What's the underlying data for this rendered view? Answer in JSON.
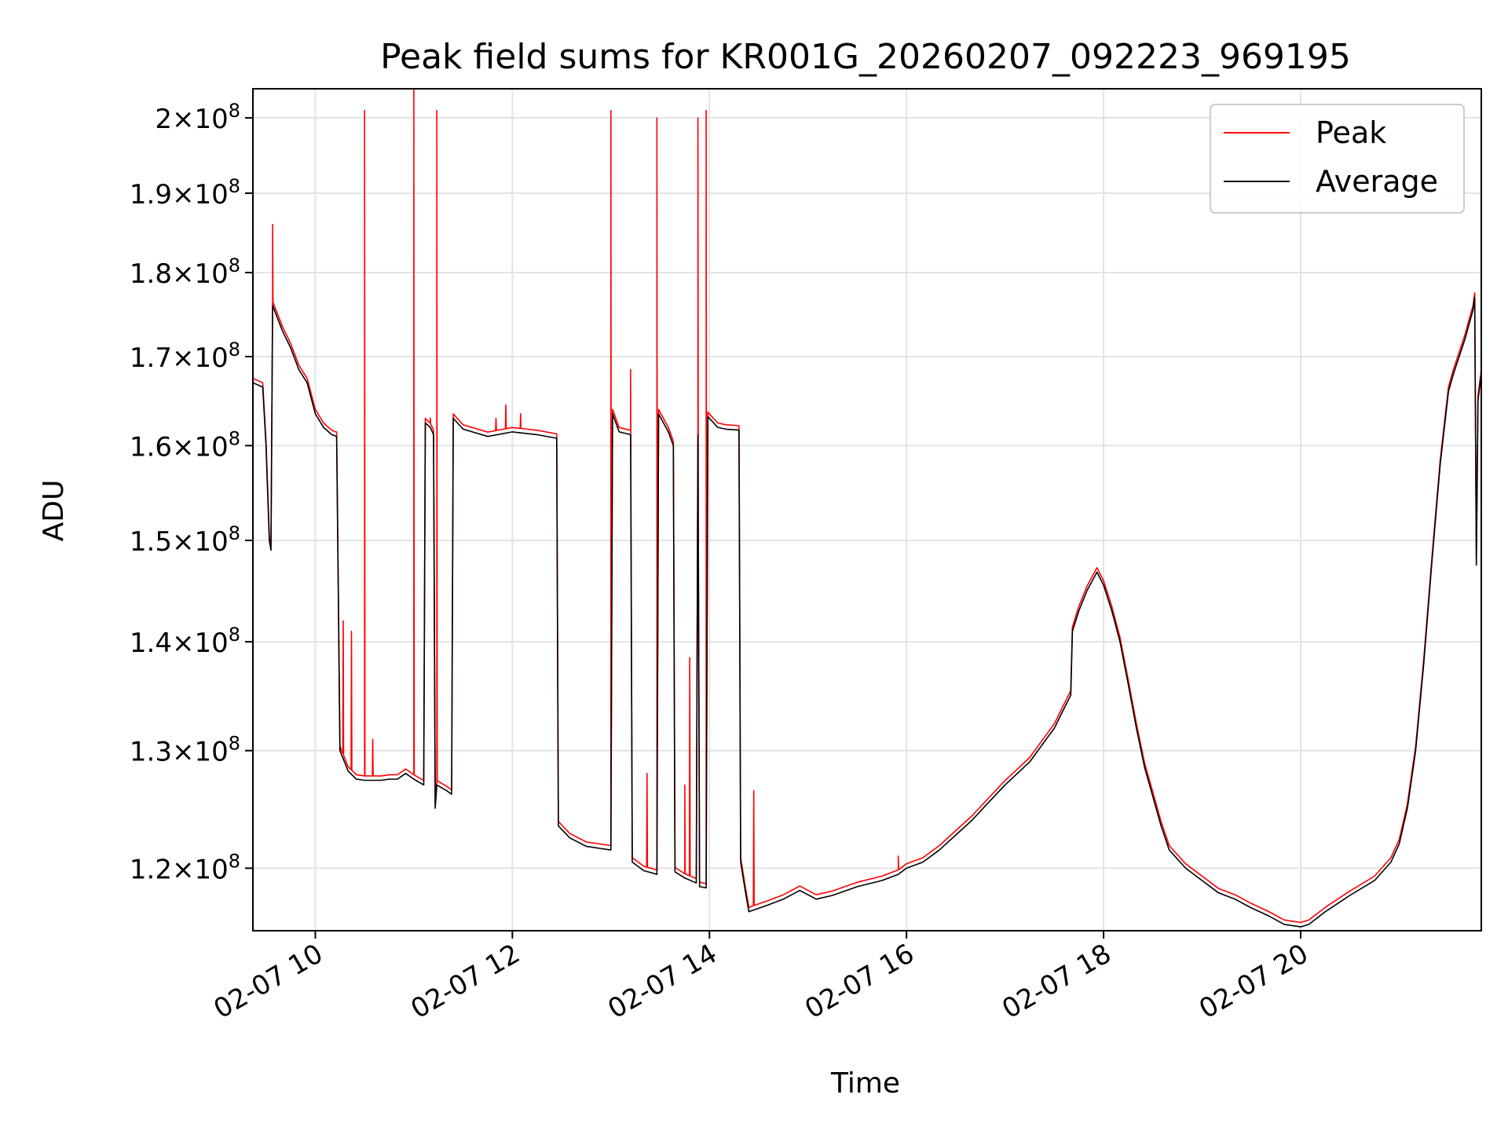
{
  "chart_data": {
    "type": "line",
    "title": "Peak field sums for KR001G_20260207_092223_969195",
    "xlabel": "Time",
    "ylabel": "ADU",
    "y_scale": "log",
    "xlim": [
      "2026-02-07 09:22",
      "2026-02-07 21:50"
    ],
    "ylim": [
      115000000,
      204000000
    ],
    "grid": true,
    "legend_placement": "top-right",
    "x_ticks": [
      "02-07 10",
      "02-07 12",
      "02-07 14",
      "02-07 16",
      "02-07 18",
      "02-07 20"
    ],
    "x_tick_hours": [
      10,
      12,
      14,
      16,
      18,
      20
    ],
    "y_ticks": [
      {
        "value": 120000000,
        "mantissa": "1.2",
        "exp": "8"
      },
      {
        "value": 130000000,
        "mantissa": "1.3",
        "exp": "8"
      },
      {
        "value": 140000000,
        "mantissa": "1.4",
        "exp": "8"
      },
      {
        "value": 150000000,
        "mantissa": "1.5",
        "exp": "8"
      },
      {
        "value": 160000000,
        "mantissa": "1.6",
        "exp": "8"
      },
      {
        "value": 170000000,
        "mantissa": "1.7",
        "exp": "8"
      },
      {
        "value": 180000000,
        "mantissa": "1.8",
        "exp": "8"
      },
      {
        "value": 190000000,
        "mantissa": "1.9",
        "exp": "8"
      },
      {
        "value": 200000000,
        "mantissa": "2",
        "exp": "8"
      }
    ],
    "series": [
      {
        "name": "Average",
        "color": "#000000",
        "points": [
          [
            "09:22",
            167000000.0
          ],
          [
            "09:28",
            166500000.0
          ],
          [
            "09:30",
            160000000.0
          ],
          [
            "09:32",
            150000000.0
          ],
          [
            "09:33",
            149000000.0
          ],
          [
            "09:34",
            176000000.0
          ],
          [
            "09:40",
            173000000.0
          ],
          [
            "09:45",
            171000000.0
          ],
          [
            "09:50",
            168500000.0
          ],
          [
            "09:55",
            167000000.0
          ],
          [
            "10:00",
            163500000.0
          ],
          [
            "10:05",
            162000000.0
          ],
          [
            "10:10",
            161200000.0
          ],
          [
            "10:13",
            161000000.0
          ],
          [
            "10:14",
            145000000.0
          ],
          [
            "10:15",
            130000000.0
          ],
          [
            "10:20",
            128200000.0
          ],
          [
            "10:25",
            127500000.0
          ],
          [
            "10:30",
            127400000.0
          ],
          [
            "10:40",
            127400000.0
          ],
          [
            "10:45",
            127500000.0
          ],
          [
            "10:50",
            127500000.0
          ],
          [
            "10:55",
            128000000.0
          ],
          [
            "11:00",
            127500000.0
          ],
          [
            "11:06",
            127000000.0
          ],
          [
            "11:07",
            162500000.0
          ],
          [
            "11:10",
            162000000.0
          ],
          [
            "11:12",
            161200000.0
          ],
          [
            "11:13",
            125000000.0
          ],
          [
            "11:14",
            127000000.0
          ],
          [
            "11:20",
            126500000.0
          ],
          [
            "11:23",
            126200000.0
          ],
          [
            "11:24",
            163000000.0
          ],
          [
            "11:30",
            161800000.0
          ],
          [
            "11:45",
            161000000.0
          ],
          [
            "12:00",
            161500000.0
          ],
          [
            "12:15",
            161200000.0
          ],
          [
            "12:27",
            160800000.0
          ],
          [
            "12:28",
            123500000.0
          ],
          [
            "12:35",
            122500000.0
          ],
          [
            "12:45",
            121800000.0
          ],
          [
            "13:00",
            121500000.0
          ],
          [
            "13:01",
            163500000.0
          ],
          [
            "13:05",
            161500000.0
          ],
          [
            "13:12",
            161200000.0
          ],
          [
            "13:13",
            120500000.0
          ],
          [
            "13:20",
            119800000.0
          ],
          [
            "13:28",
            119500000.0
          ],
          [
            "13:29",
            163500000.0
          ],
          [
            "13:35",
            161500000.0
          ],
          [
            "13:38",
            160000000.0
          ],
          [
            "13:39",
            119700000.0
          ],
          [
            "13:45",
            119200000.0
          ],
          [
            "13:52",
            118800000.0
          ],
          [
            "13:53",
            161200000.0
          ],
          [
            "13:54",
            118500000.0
          ],
          [
            "13:58",
            118400000.0
          ],
          [
            "13:59",
            163200000.0
          ],
          [
            "14:05",
            162000000.0
          ],
          [
            "14:10",
            161800000.0
          ],
          [
            "14:18",
            161700000.0
          ],
          [
            "14:19",
            120500000.0
          ],
          [
            "14:22",
            118000000.0
          ],
          [
            "14:24",
            116500000.0
          ],
          [
            "14:35",
            117000000.0
          ],
          [
            "14:45",
            117500000.0
          ],
          [
            "14:55",
            118200000.0
          ],
          [
            "15:05",
            117500000.0
          ],
          [
            "15:15",
            117800000.0
          ],
          [
            "15:30",
            118500000.0
          ],
          [
            "15:45",
            119000000.0
          ],
          [
            "15:55",
            119500000.0
          ],
          [
            "16:00",
            120000000.0
          ],
          [
            "16:10",
            120500000.0
          ],
          [
            "16:20",
            121500000.0
          ],
          [
            "16:40",
            124000000.0
          ],
          [
            "16:50",
            125500000.0
          ],
          [
            "17:00",
            127000000.0
          ],
          [
            "17:15",
            129000000.0
          ],
          [
            "17:25",
            131000000.0
          ],
          [
            "17:30",
            132000000.0
          ],
          [
            "17:35",
            133500000.0
          ],
          [
            "17:40",
            135000000.0
          ],
          [
            "17:41",
            141000000.0
          ],
          [
            "17:45",
            143000000.0
          ],
          [
            "17:50",
            145000000.0
          ],
          [
            "17:56",
            146800000.0
          ],
          [
            "18:00",
            145500000.0
          ],
          [
            "18:05",
            143000000.0
          ],
          [
            "18:10",
            140000000.0
          ],
          [
            "18:15",
            136000000.0
          ],
          [
            "18:20",
            132000000.0
          ],
          [
            "18:25",
            128500000.0
          ],
          [
            "18:30",
            126000000.0
          ],
          [
            "18:35",
            123500000.0
          ],
          [
            "18:40",
            121500000.0
          ],
          [
            "18:50",
            120000000.0
          ],
          [
            "19:00",
            119000000.0
          ],
          [
            "19:10",
            118000000.0
          ],
          [
            "19:20",
            117500000.0
          ],
          [
            "19:30",
            116800000.0
          ],
          [
            "19:40",
            116200000.0
          ],
          [
            "19:50",
            115500000.0
          ],
          [
            "20:00",
            115300000.0
          ],
          [
            "20:05",
            115500000.0
          ],
          [
            "20:15",
            116500000.0
          ],
          [
            "20:30",
            117800000.0
          ],
          [
            "20:45",
            119000000.0
          ],
          [
            "20:55",
            120500000.0
          ],
          [
            "21:00",
            122000000.0
          ],
          [
            "21:05",
            125000000.0
          ],
          [
            "21:10",
            130000000.0
          ],
          [
            "21:15",
            138000000.0
          ],
          [
            "21:20",
            148000000.0
          ],
          [
            "21:25",
            158000000.0
          ],
          [
            "21:30",
            166000000.0
          ],
          [
            "21:33",
            168000000.0
          ],
          [
            "21:40",
            172000000.0
          ],
          [
            "21:45",
            175500000.0
          ],
          [
            "21:46",
            177000000.0
          ],
          [
            "21:47",
            147500000.0
          ],
          [
            "21:48",
            165000000.0
          ],
          [
            "21:50",
            168000000.0
          ]
        ]
      },
      {
        "name": "Peak",
        "color": "#ff0000",
        "spikes": [
          [
            "09:34",
            186000000.0
          ],
          [
            "10:14",
            146000000.0
          ],
          [
            "10:17",
            142000000.0
          ],
          [
            "10:22",
            141000000.0
          ],
          [
            "10:30",
            201000000.0
          ],
          [
            "10:35",
            131000000.0
          ],
          [
            "11:00",
            204000000.0
          ],
          [
            "11:10",
            163000000.0
          ],
          [
            "11:14",
            201000000.0
          ],
          [
            "11:50",
            163000000.0
          ],
          [
            "11:56",
            164500000.0
          ],
          [
            "12:05",
            163500000.0
          ],
          [
            "13:00",
            201000000.0
          ],
          [
            "13:12",
            168500000.0
          ],
          [
            "13:22",
            128000000.0
          ],
          [
            "13:28",
            200000000.0
          ],
          [
            "13:45",
            127000000.0
          ],
          [
            "13:48",
            138500000.0
          ],
          [
            "13:53",
            200000000.0
          ],
          [
            "13:58",
            201000000.0
          ],
          [
            "14:27",
            126500000.0
          ],
          [
            "15:55",
            121000000.0
          ]
        ]
      }
    ]
  }
}
